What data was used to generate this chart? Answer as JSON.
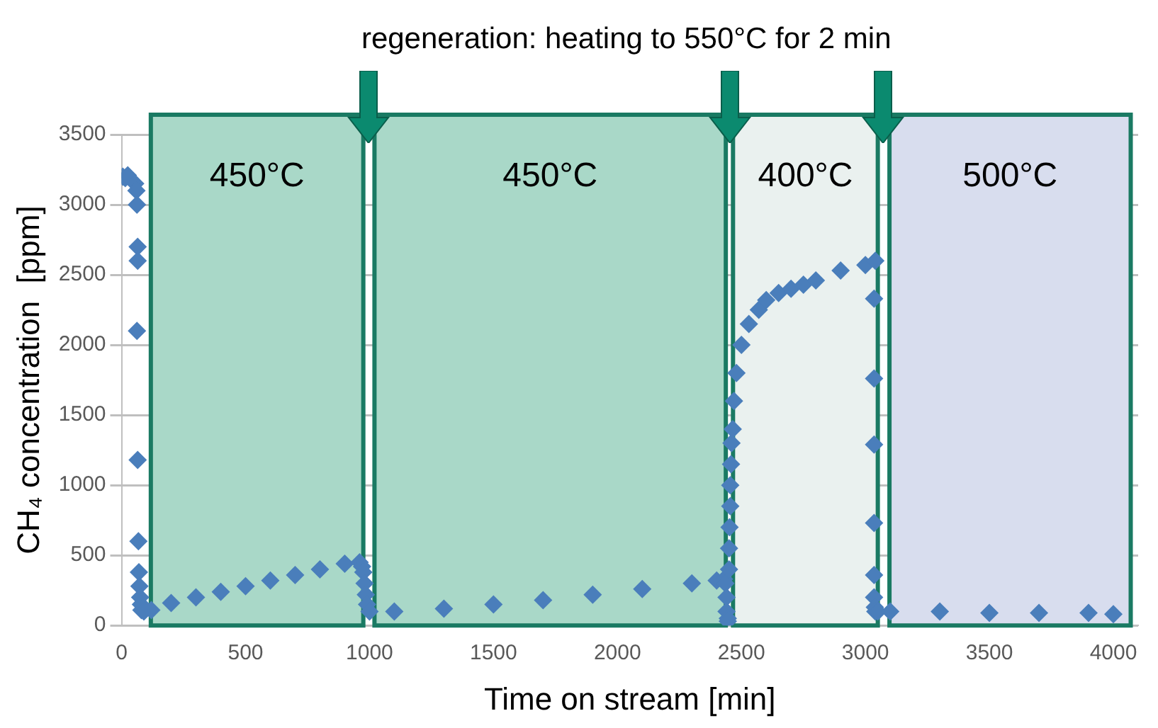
{
  "chart_data": {
    "type": "scatter",
    "xlabel": "Time on stream [min]",
    "ylabel": "CH₄ concentration  [ppm]",
    "annotations": [
      "regeneration: heating to 550°C for 2 min"
    ],
    "xlim": [
      0,
      4100
    ],
    "xticks": [
      0,
      500,
      1000,
      1500,
      2000,
      2500,
      3000,
      3500,
      4000
    ],
    "ylim": [
      0,
      3500
    ],
    "yticks": [
      0,
      500,
      1000,
      1500,
      2000,
      2500,
      3000,
      3500
    ],
    "grid": "y",
    "marker": "diamond",
    "legend": false,
    "bands": [
      {
        "axis": "x",
        "from": 118,
        "to": 975,
        "label": "450°C",
        "color": "#a9d8c8"
      },
      {
        "axis": "x",
        "from": 1020,
        "to": 2437,
        "label": "450°C",
        "color": "#a9d8c8"
      },
      {
        "axis": "x",
        "from": 2466,
        "to": 3050,
        "label": "400°C",
        "color": "#eaf1ef"
      },
      {
        "axis": "x",
        "from": 3097,
        "to": 4070,
        "label": "500°C",
        "color": "#d8ddee"
      }
    ],
    "series": [
      {
        "color": "#4a7ebb",
        "x": [
          5,
          15,
          25,
          55,
          60,
          62,
          65,
          65,
          62,
          65,
          68,
          70,
          72,
          75,
          78,
          80,
          90,
          120,
          200,
          300,
          400,
          500,
          600,
          700,
          800,
          900,
          960,
          970,
          975,
          980,
          985,
          990,
          1000,
          1100,
          1300,
          1500,
          1700,
          1900,
          2100,
          2300,
          2400,
          2430,
          2435,
          2440,
          2440,
          2445,
          2445,
          2450,
          2450,
          2452,
          2455,
          2455,
          2458,
          2460,
          2465,
          2470,
          2480,
          2500,
          2530,
          2570,
          2600,
          2650,
          2700,
          2750,
          2800,
          2900,
          3000,
          3040,
          3035,
          3035,
          3035,
          3035,
          3035,
          3035,
          3038,
          3040,
          3050,
          3100,
          3300,
          3500,
          3700,
          3900,
          4000
        ],
        "values": [
          3200,
          3190,
          3210,
          3150,
          3100,
          3000,
          2700,
          2600,
          2100,
          1180,
          600,
          380,
          280,
          200,
          150,
          110,
          100,
          110,
          160,
          200,
          240,
          280,
          320,
          360,
          400,
          440,
          450,
          420,
          380,
          300,
          220,
          150,
          100,
          100,
          120,
          150,
          180,
          220,
          260,
          300,
          320,
          330,
          300,
          200,
          100,
          50,
          30,
          400,
          550,
          700,
          850,
          1000,
          1150,
          1300,
          1400,
          1600,
          1800,
          2000,
          2150,
          2250,
          2320,
          2370,
          2400,
          2430,
          2460,
          2530,
          2570,
          2600,
          2330,
          1760,
          1290,
          730,
          360,
          200,
          130,
          100,
          100,
          100,
          100,
          90,
          90,
          90,
          80
        ]
      }
    ]
  }
}
